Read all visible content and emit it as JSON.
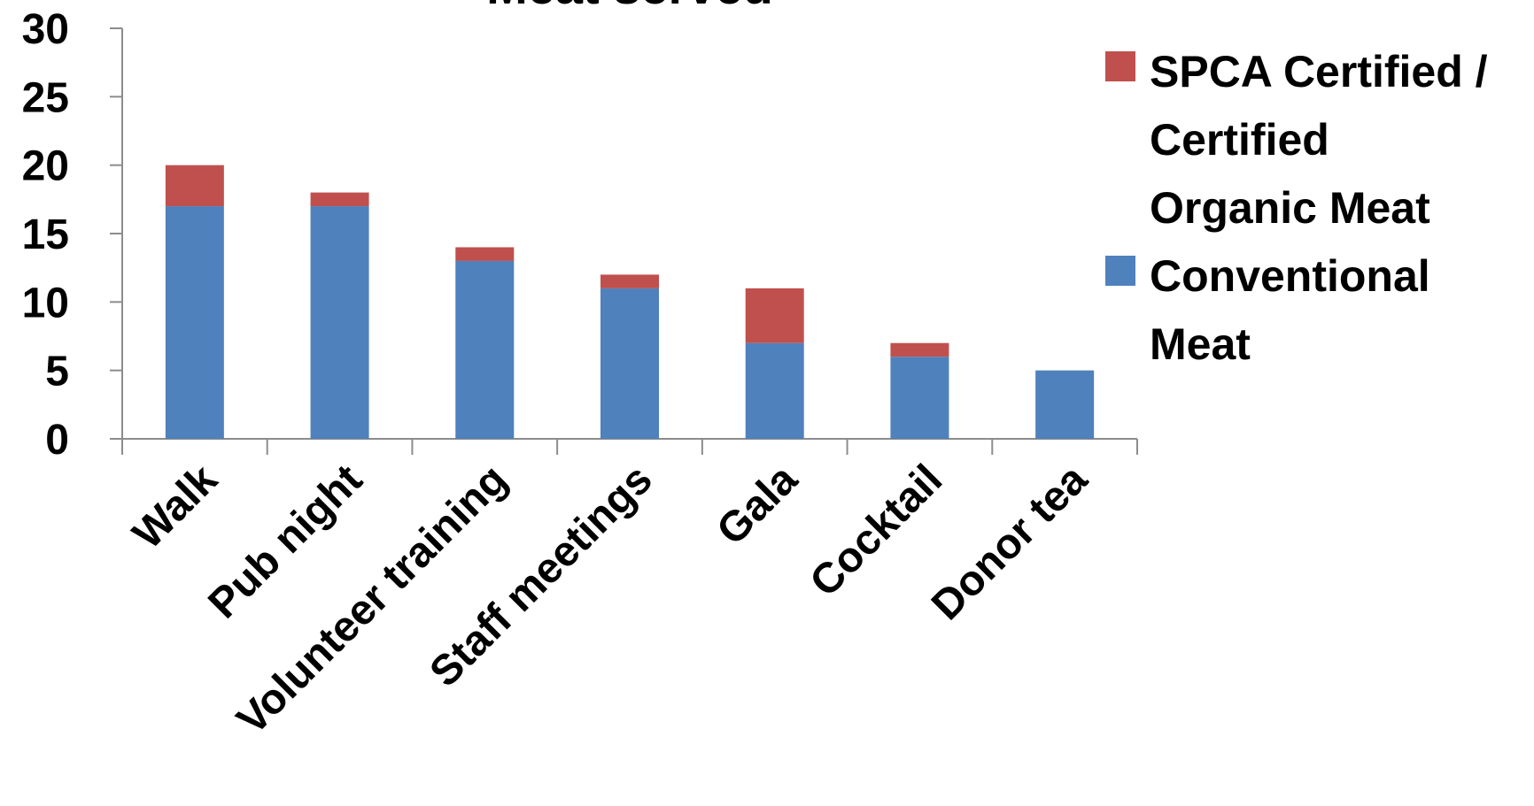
{
  "chart_data": {
    "type": "bar",
    "stacked": true,
    "title": "Meat served",
    "xlabel": "",
    "ylabel": "",
    "ylim": [
      0,
      30
    ],
    "y_ticks": [
      0,
      5,
      10,
      15,
      20,
      25,
      30
    ],
    "grid": false,
    "legend_position": "right",
    "categories": [
      "Walk",
      "Pub night",
      "Volunteer training",
      "Staff meetings",
      "Gala",
      "Cocktail",
      "Donor tea"
    ],
    "series": [
      {
        "name": "Conventional Meat",
        "color": "#4F81BD",
        "values": [
          17,
          17,
          13,
          11,
          7,
          6,
          5
        ]
      },
      {
        "name": "SPCA Certified / Certified Organic Meat",
        "color": "#C0504D",
        "values": [
          3,
          1,
          1,
          1,
          4,
          1,
          0
        ]
      }
    ],
    "legend": {
      "entries": [
        {
          "series": "SPCA Certified / Certified Organic Meat",
          "lines": [
            "SPCA Certified /",
            "Certified",
            "Organic Meat"
          ],
          "color": "#C0504D"
        },
        {
          "series": "Conventional Meat",
          "lines": [
            "Conventional",
            "Meat"
          ],
          "color": "#4F81BD"
        }
      ]
    }
  }
}
